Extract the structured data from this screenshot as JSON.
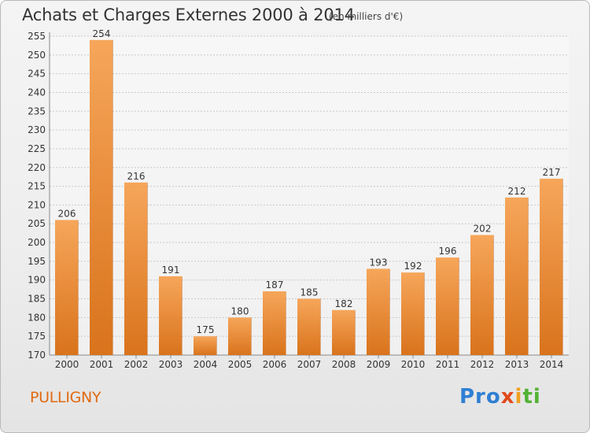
{
  "header": {
    "title": "Achats et Charges Externes 2000 à 2014",
    "subtitle": "(en milliers d'€)"
  },
  "footer": {
    "commune": "PULLIGNY",
    "logo_text": "Proxiti",
    "logo_parts": [
      "Pro",
      "x",
      "i",
      "ti"
    ]
  },
  "colors": {
    "bar_light": "#f6a65a",
    "bar_dark": "#d9731c",
    "accent": "#e06a10",
    "grid": "#c8c8c8"
  },
  "chart_data": {
    "type": "bar",
    "title": "Achats et Charges Externes 2000 à 2014",
    "subtitle": "(en milliers d'€)",
    "categories": [
      "2000",
      "2001",
      "2002",
      "2003",
      "2004",
      "2005",
      "2006",
      "2007",
      "2008",
      "2009",
      "2010",
      "2011",
      "2012",
      "2013",
      "2014"
    ],
    "values": [
      206,
      254,
      216,
      191,
      175,
      180,
      187,
      185,
      182,
      193,
      192,
      196,
      202,
      212,
      217
    ],
    "xlabel": "",
    "ylabel": "",
    "ylim": [
      170,
      255
    ],
    "yticks": [
      170,
      175,
      180,
      185,
      190,
      195,
      200,
      205,
      210,
      215,
      220,
      225,
      230,
      235,
      240,
      245,
      250,
      255
    ],
    "grid": true,
    "grid_axis": "y",
    "data_labels": true
  }
}
